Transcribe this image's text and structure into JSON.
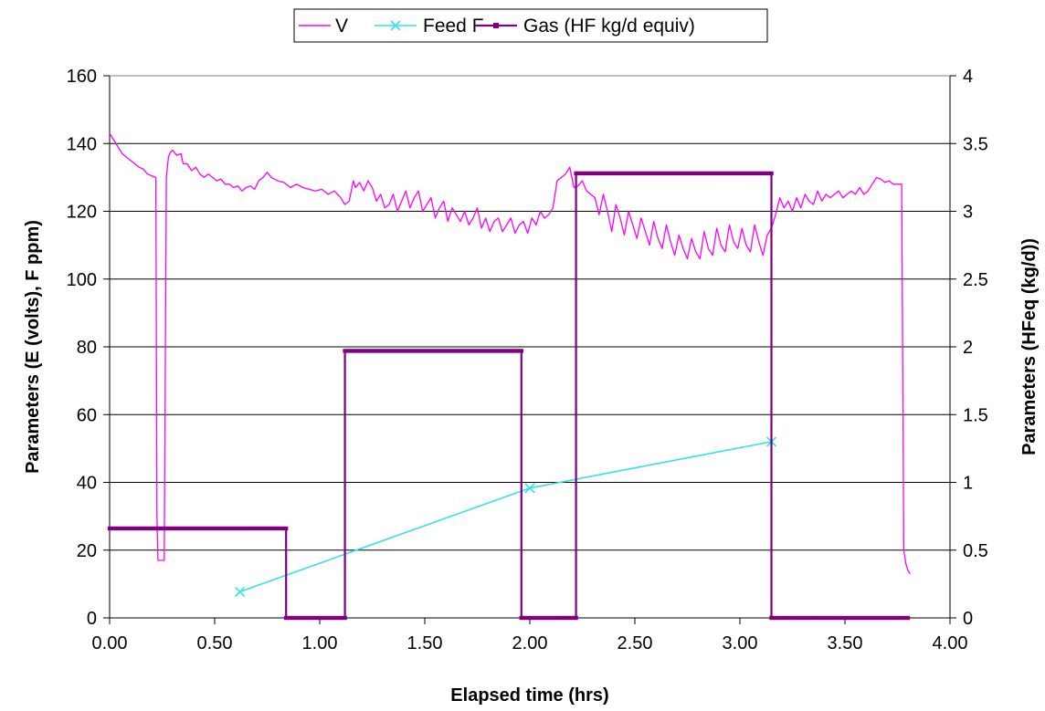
{
  "chart_data": {
    "type": "line",
    "xlabel": "Elapsed time (hrs)",
    "ylabel": "Parameters (E (volts), F ppm)",
    "y2label": "Parameters (HFeq (kg/d))",
    "xlim": [
      0,
      4
    ],
    "ylim": [
      0,
      160
    ],
    "y2lim": [
      0,
      4
    ],
    "x_ticks": [
      "0.00",
      "0.50",
      "1.00",
      "1.50",
      "2.00",
      "2.50",
      "3.00",
      "3.50",
      "4.00"
    ],
    "y_ticks": [
      "0",
      "20",
      "40",
      "60",
      "80",
      "100",
      "120",
      "140",
      "160"
    ],
    "y2_ticks": [
      "0",
      "0.5",
      "1",
      "1.5",
      "2",
      "2.5",
      "3",
      "3.5",
      "4"
    ],
    "grid": "horizontal",
    "legend": "top-center",
    "series": [
      {
        "name": "V",
        "axis": "left",
        "color": "#ff00ff",
        "marker": "none",
        "x": [
          0.0,
          0.02,
          0.04,
          0.06,
          0.08,
          0.1,
          0.12,
          0.14,
          0.16,
          0.18,
          0.2,
          0.22,
          0.225,
          0.23,
          0.235,
          0.24,
          0.26,
          0.27,
          0.28,
          0.29,
          0.3,
          0.32,
          0.34,
          0.35,
          0.37,
          0.39,
          0.41,
          0.43,
          0.45,
          0.47,
          0.49,
          0.51,
          0.53,
          0.55,
          0.57,
          0.59,
          0.61,
          0.63,
          0.65,
          0.67,
          0.69,
          0.71,
          0.73,
          0.75,
          0.77,
          0.8,
          0.83,
          0.86,
          0.89,
          0.92,
          0.95,
          0.98,
          1.01,
          1.04,
          1.07,
          1.1,
          1.12,
          1.14,
          1.16,
          1.17,
          1.19,
          1.21,
          1.23,
          1.25,
          1.27,
          1.29,
          1.31,
          1.33,
          1.35,
          1.37,
          1.39,
          1.41,
          1.43,
          1.45,
          1.47,
          1.49,
          1.51,
          1.53,
          1.55,
          1.57,
          1.59,
          1.61,
          1.63,
          1.65,
          1.67,
          1.69,
          1.71,
          1.73,
          1.75,
          1.77,
          1.79,
          1.81,
          1.83,
          1.85,
          1.87,
          1.89,
          1.91,
          1.93,
          1.95,
          1.97,
          1.99,
          2.01,
          2.03,
          2.05,
          2.07,
          2.09,
          2.11,
          2.13,
          2.15,
          2.17,
          2.19,
          2.21,
          2.23,
          2.25,
          2.27,
          2.29,
          2.31,
          2.33,
          2.35,
          2.37,
          2.39,
          2.41,
          2.43,
          2.45,
          2.47,
          2.49,
          2.51,
          2.53,
          2.55,
          2.57,
          2.59,
          2.61,
          2.63,
          2.65,
          2.67,
          2.69,
          2.71,
          2.73,
          2.75,
          2.77,
          2.79,
          2.81,
          2.83,
          2.85,
          2.87,
          2.89,
          2.91,
          2.93,
          2.95,
          2.97,
          2.99,
          3.01,
          3.03,
          3.05,
          3.07,
          3.09,
          3.11,
          3.13,
          3.15,
          3.17,
          3.19,
          3.21,
          3.23,
          3.25,
          3.27,
          3.29,
          3.31,
          3.33,
          3.35,
          3.37,
          3.39,
          3.41,
          3.43,
          3.45,
          3.47,
          3.49,
          3.51,
          3.53,
          3.55,
          3.57,
          3.59,
          3.61,
          3.63,
          3.65,
          3.67,
          3.69,
          3.71,
          3.73,
          3.75,
          3.77,
          3.78,
          3.79,
          3.8,
          3.81
        ],
        "y": [
          143,
          141,
          139,
          137,
          136,
          135,
          134,
          133,
          132.5,
          131,
          130.5,
          130,
          30,
          17,
          17,
          17,
          17,
          130,
          136,
          137.5,
          138,
          136.5,
          137,
          134,
          134,
          132,
          133,
          131,
          130,
          131,
          130,
          129,
          129.5,
          128,
          128,
          127,
          127.5,
          126,
          127,
          127.5,
          126.5,
          129,
          130,
          131.5,
          130,
          129,
          128.5,
          127,
          128,
          127,
          126.5,
          126,
          126.5,
          125,
          126,
          124,
          122,
          123,
          129,
          127,
          128.5,
          126,
          129,
          127,
          123,
          125,
          121,
          122,
          125,
          120,
          123,
          126,
          121,
          124,
          126,
          120,
          122,
          124,
          118,
          121,
          123,
          117,
          121,
          119,
          117,
          120,
          116,
          118,
          121,
          115,
          118,
          114,
          117,
          118,
          114,
          116,
          118,
          113.5,
          116,
          117,
          113.5,
          118,
          116,
          120,
          118,
          119,
          121,
          129,
          130,
          131,
          133,
          127,
          127.5,
          129,
          126,
          125,
          124,
          119,
          125,
          120,
          114,
          122,
          118,
          113,
          120,
          116,
          112,
          118,
          114,
          110,
          117,
          112,
          109,
          116,
          111,
          107,
          113,
          109,
          106,
          112,
          108,
          106,
          114,
          109,
          107,
          115,
          110,
          108,
          116,
          111,
          109,
          115,
          110,
          108,
          116,
          111,
          107,
          113,
          115,
          119,
          124,
          121,
          123,
          120,
          124,
          121,
          125,
          123,
          122,
          126,
          123,
          125,
          124,
          125,
          126,
          124,
          125,
          126,
          125,
          127,
          125,
          126,
          128,
          130,
          129.5,
          128.5,
          129,
          128,
          128,
          128,
          20,
          16,
          14,
          13
        ]
      },
      {
        "name": "Feed F",
        "axis": "left",
        "color": "#33e0ec",
        "marker": "x",
        "x": [
          0.62,
          2.0,
          3.15
        ],
        "y": [
          7.7,
          38.3,
          52
        ]
      },
      {
        "name": "Gas (HF kg/d equiv)",
        "axis": "right",
        "color": "#800080",
        "marker": "square",
        "x": [
          0.0,
          0.84,
          0.84,
          1.12,
          1.12,
          1.96,
          1.96,
          2.22,
          2.22,
          3.15,
          3.15,
          3.8
        ],
        "y": [
          0.66,
          0.66,
          0.0,
          0.0,
          1.97,
          1.97,
          0.0,
          0.0,
          3.28,
          3.28,
          0.0,
          0.0
        ]
      }
    ]
  }
}
